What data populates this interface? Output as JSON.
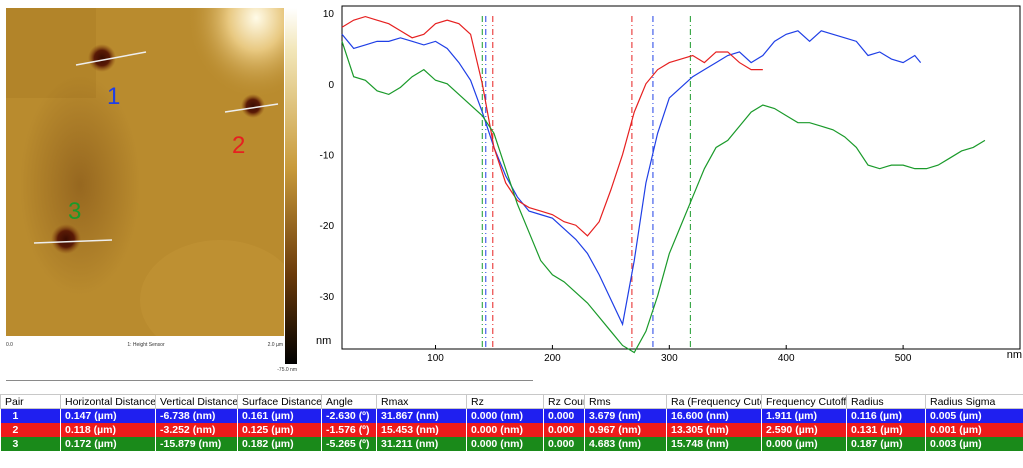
{
  "afm": {
    "markers": [
      {
        "label": "1",
        "color": "#1f3fe6"
      },
      {
        "label": "2",
        "color": "#e62020"
      },
      {
        "label": "3",
        "color": "#1a9a2a"
      }
    ],
    "axis_left": "0.0",
    "axis_right": "2.0 µm",
    "caption": "1: Height Sensor",
    "scale_bottom": "-75.0 nm"
  },
  "chart_data": {
    "type": "line",
    "xlabel": "nm",
    "ylabel": "nm",
    "xlim": [
      20,
      600
    ],
    "ylim": [
      -37.5,
      11
    ],
    "xticks": [
      100,
      200,
      300,
      400,
      500
    ],
    "yticks": [
      10,
      0,
      -10,
      -20,
      -30
    ],
    "grid": false,
    "series": [
      {
        "color": "#1f3fe6",
        "x": [
          20,
          30,
          40,
          50,
          60,
          70,
          80,
          90,
          100,
          110,
          120,
          130,
          140,
          150,
          160,
          170,
          180,
          190,
          200,
          210,
          220,
          230,
          240,
          250,
          260,
          270,
          280,
          290,
          300,
          310,
          320,
          330,
          340,
          350,
          360,
          370,
          380,
          390,
          400,
          410,
          420,
          430,
          440,
          450,
          460,
          470,
          480,
          490,
          500,
          510,
          515
        ],
        "y": [
          7,
          5,
          5.5,
          6,
          6,
          6.5,
          6,
          5.5,
          6,
          5,
          3,
          0.5,
          -4,
          -9,
          -13,
          -16,
          -18,
          -18.5,
          -19,
          -20.5,
          -22,
          -24,
          -27,
          -30.5,
          -34,
          -25,
          -14,
          -7,
          -2,
          -0.5,
          1,
          2,
          3,
          4,
          4.5,
          3,
          4,
          6,
          7,
          7.5,
          6,
          7.5,
          7,
          6.5,
          6,
          4,
          4.5,
          3.5,
          3,
          4,
          3
        ]
      },
      {
        "color": "#e62020",
        "x": [
          20,
          30,
          40,
          50,
          60,
          70,
          80,
          90,
          100,
          110,
          120,
          130,
          140,
          150,
          160,
          170,
          180,
          190,
          200,
          210,
          220,
          230,
          240,
          250,
          260,
          270,
          280,
          290,
          300,
          310,
          320,
          330,
          340,
          350,
          360,
          370,
          380
        ],
        "y": [
          8,
          9,
          9.5,
          9,
          8.5,
          7.5,
          6.5,
          7,
          8.5,
          9,
          8.5,
          7,
          0,
          -9,
          -14,
          -16.5,
          -17.5,
          -18,
          -18.5,
          -19.5,
          -20,
          -21.5,
          -19.5,
          -15,
          -10,
          -4,
          0,
          2,
          3,
          3.5,
          4,
          3,
          4.5,
          4.5,
          3,
          2,
          2
        ]
      },
      {
        "color": "#1a9a2a",
        "x": [
          20,
          30,
          40,
          50,
          60,
          70,
          80,
          90,
          100,
          110,
          120,
          130,
          140,
          150,
          160,
          170,
          180,
          190,
          200,
          210,
          220,
          230,
          240,
          250,
          260,
          270,
          280,
          290,
          300,
          310,
          320,
          330,
          340,
          350,
          360,
          370,
          380,
          390,
          400,
          410,
          420,
          430,
          440,
          450,
          460,
          470,
          480,
          490,
          500,
          510,
          520,
          530,
          540,
          550,
          560,
          570
        ],
        "y": [
          6,
          1,
          0.5,
          -1,
          -1.5,
          -0.5,
          1,
          2,
          0.5,
          0,
          -1.5,
          -3,
          -4.5,
          -7,
          -12,
          -17,
          -21,
          -25,
          -27,
          -28,
          -29.5,
          -31,
          -33,
          -35,
          -37,
          -38,
          -35,
          -30,
          -24,
          -20,
          -16,
          -12,
          -9,
          -8,
          -6,
          -4,
          -3,
          -3.5,
          -4.5,
          -5.5,
          -5.5,
          -6,
          -6.5,
          -7.5,
          -9,
          -11.5,
          -12,
          -11.5,
          -11.5,
          -12,
          -12,
          -11.5,
          -10.5,
          -9.5,
          -9,
          -8
        ]
      }
    ],
    "vlines": [
      {
        "x": 140,
        "color": "#1a9a2a"
      },
      {
        "x": 143,
        "color": "#1f3fe6"
      },
      {
        "x": 149,
        "color": "#e62020"
      },
      {
        "x": 268,
        "color": "#e62020"
      },
      {
        "x": 286,
        "color": "#1f3fe6"
      },
      {
        "x": 318,
        "color": "#1a9a2a"
      }
    ]
  },
  "table": {
    "headers": [
      "Pair",
      "Horizontal Distance",
      "Vertical Distance",
      "Surface Distance",
      "Angle",
      "Rmax",
      "Rz",
      "Rz Count",
      "Rms",
      "Ra (Frequency Cutoff)",
      "Frequency Cutoff",
      "Radius",
      "Radius Sigma"
    ],
    "rows": [
      {
        "color": "#1f1ff0",
        "cells": [
          "1",
          "0.147 (µm)",
          "-6.738 (nm)",
          "0.161 (µm)",
          "-2.630 (º)",
          "31.867 (nm)",
          "0.000 (nm)",
          "0.000",
          "3.679 (nm)",
          "16.600 (nm)",
          "1.911 (µm)",
          "0.116 (µm)",
          "0.005 (µm)"
        ]
      },
      {
        "color": "#ee1b1b",
        "cells": [
          "2",
          "0.118 (µm)",
          "-3.252 (nm)",
          "0.125 (µm)",
          "-1.576 (º)",
          "15.453 (nm)",
          "0.000 (nm)",
          "0.000",
          "0.967 (nm)",
          "13.305 (nm)",
          "2.590 (µm)",
          "0.131 (µm)",
          "0.001 (µm)"
        ]
      },
      {
        "color": "#1a8a1a",
        "cells": [
          "3",
          "0.172 (µm)",
          "-15.879 (nm)",
          "0.182 (µm)",
          "-5.265 (º)",
          "31.211 (nm)",
          "0.000 (nm)",
          "0.000",
          "4.683 (nm)",
          "15.748 (nm)",
          "0.000 (µm)",
          "0.187 (µm)",
          "0.003 (µm)"
        ]
      }
    ]
  }
}
